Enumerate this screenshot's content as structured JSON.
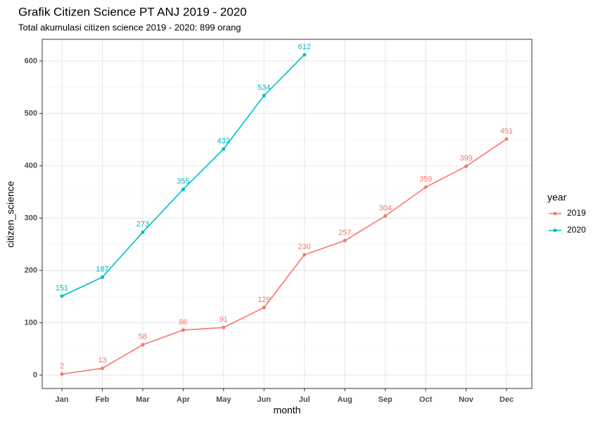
{
  "chart_data": {
    "type": "line",
    "title": "Grafik Citizen Science PT ANJ 2019 - 2020",
    "subtitle": "Total akumulasi citizen science 2019 - 2020: 899 orang",
    "x_label": "month",
    "y_label": "citizen_science",
    "categories": [
      "Jan",
      "Feb",
      "Mar",
      "Apr",
      "May",
      "Jun",
      "Jul",
      "Aug",
      "Sep",
      "Oct",
      "Nov",
      "Dec"
    ],
    "series": [
      {
        "name": "2019",
        "color": "#F8766D",
        "values": [
          2,
          13,
          58,
          86,
          91,
          129,
          230,
          257,
          304,
          359,
          399,
          451
        ]
      },
      {
        "name": "2020",
        "color": "#00BFC4",
        "values": [
          151,
          187,
          273,
          355,
          432,
          534,
          612,
          null,
          null,
          null,
          null,
          null
        ]
      }
    ],
    "ylim": [
      -25.5,
      641.5
    ],
    "yticks": [
      0,
      100,
      200,
      300,
      400,
      500,
      600
    ],
    "y_minor_grid": [
      50,
      150,
      250,
      350,
      450,
      550
    ],
    "grid": true,
    "legend_title": "year",
    "legend_position": "right"
  }
}
